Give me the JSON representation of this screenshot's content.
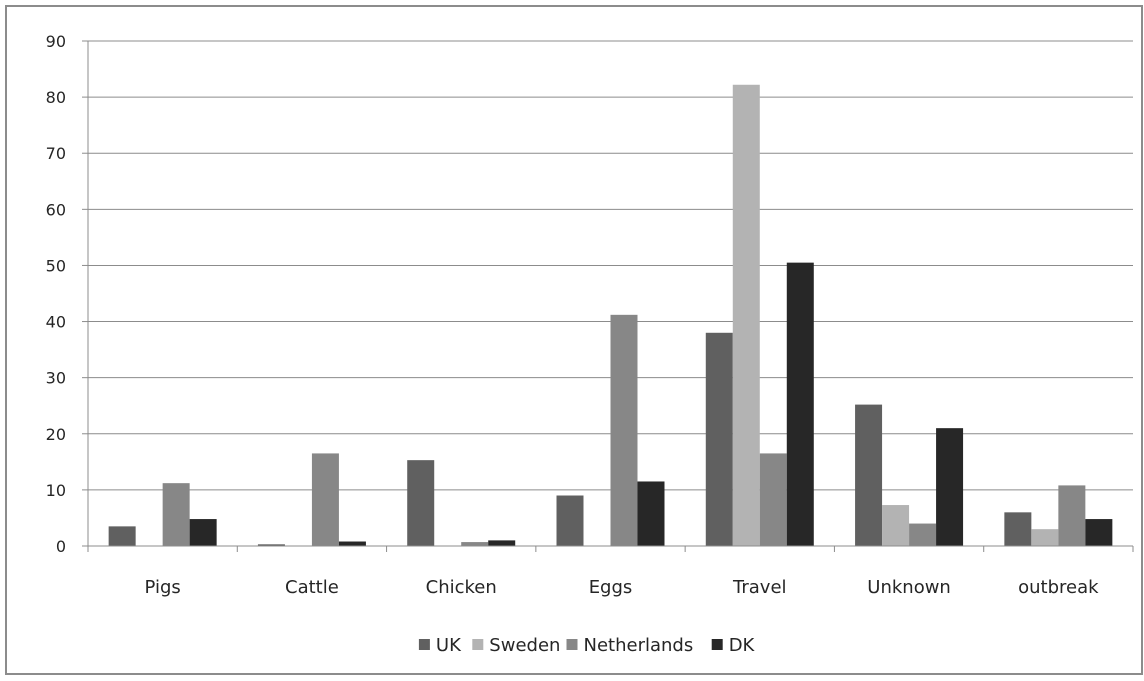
{
  "chart_data": {
    "type": "bar",
    "title": "",
    "xlabel": "",
    "ylabel": "",
    "ylim": [
      0,
      90
    ],
    "yticks": [
      0,
      10,
      20,
      30,
      40,
      50,
      60,
      70,
      80,
      90
    ],
    "grid": true,
    "legend_position": "bottom",
    "categories": [
      "Pigs",
      "Cattle",
      "Chicken",
      "Eggs",
      "Travel",
      "Unknown",
      "outbreak"
    ],
    "series": [
      {
        "name": "UK",
        "color": "#606060",
        "values": [
          3.5,
          0.3,
          15.3,
          9,
          38,
          25.2,
          6
        ]
      },
      {
        "name": "Sweden",
        "color": "#b3b3b3",
        "values": [
          0,
          0,
          0,
          0,
          82.2,
          7.3,
          3
        ]
      },
      {
        "name": "Netherlands",
        "color": "#878787",
        "values": [
          11.2,
          16.5,
          0.7,
          41.2,
          16.5,
          4,
          10.8
        ]
      },
      {
        "name": "DK",
        "color": "#272727",
        "values": [
          4.8,
          0.8,
          1,
          11.5,
          50.5,
          21,
          4.8
        ]
      }
    ]
  }
}
